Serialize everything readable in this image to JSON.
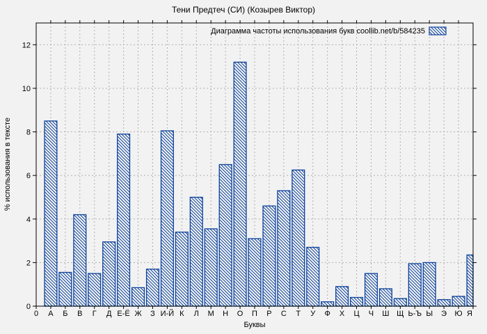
{
  "chart_data": {
    "type": "bar",
    "title": "Тени Предтеч (СИ) (Козырев Виктор)",
    "legend_label": "Диаграмма частоты использования букв coollib.net/b/584235",
    "xlabel": "Буквы",
    "ylabel": "% использования в тексте",
    "x_origin_label": "0",
    "categories": [
      "А",
      "Б",
      "В",
      "Г",
      "Д",
      "Е-Ё",
      "Ж",
      "З",
      "И-Й",
      "К",
      "Л",
      "М",
      "Н",
      "О",
      "П",
      "Р",
      "С",
      "Т",
      "У",
      "Ф",
      "Х",
      "Ц",
      "Ч",
      "Ш",
      "Щ",
      "Ь-Ъ",
      "Ы",
      "Э",
      "Ю",
      "Я"
    ],
    "values": [
      8.5,
      1.55,
      4.2,
      1.5,
      2.95,
      7.9,
      0.85,
      1.7,
      8.05,
      3.4,
      5.0,
      3.55,
      6.5,
      11.2,
      3.1,
      4.6,
      5.3,
      6.25,
      2.7,
      0.2,
      0.9,
      0.4,
      1.5,
      0.8,
      0.35,
      1.95,
      2.0,
      0.3,
      0.45,
      2.35
    ],
    "ylim": [
      0,
      13
    ],
    "yticks": [
      0,
      2,
      4,
      6,
      8,
      10,
      12
    ],
    "grid": true,
    "legend_position": "top-right",
    "hatch_style": "diagonal-backslash",
    "colors": {
      "bar": "#0d429b",
      "grid": "#b0b0b0",
      "axis": "#000000",
      "background": "#f2f2f2",
      "bar_fill_base": "#f5f5f5",
      "text": "#000000"
    }
  }
}
